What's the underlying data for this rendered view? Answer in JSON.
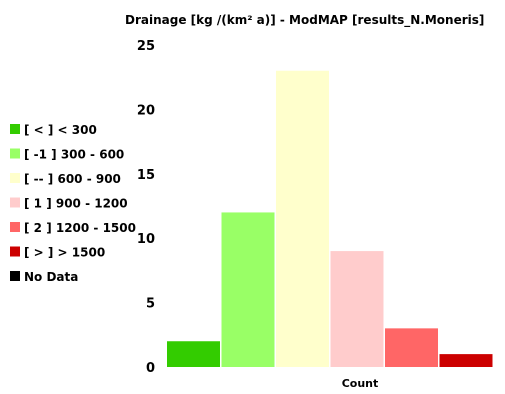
{
  "chart_data": {
    "type": "bar",
    "title": "Drainage [kg /(km² a)] - ModMAP [results_N.Moneris]",
    "xlabel": "Count",
    "ylabel": "",
    "ylim": [
      0,
      25
    ],
    "yticks": [
      "0",
      "5",
      "10",
      "15",
      "20",
      "25"
    ],
    "legend_position": "left",
    "grid": false,
    "series": [
      {
        "name": "[ < ] < 300",
        "value": 2,
        "color": "#33cc00"
      },
      {
        "name": "[ -1 ] 300 - 600",
        "value": 12,
        "color": "#99ff66"
      },
      {
        "name": "[ -- ] 600 - 900",
        "value": 23,
        "color": "#ffffcc"
      },
      {
        "name": "[ 1 ] 900 - 1200",
        "value": 9,
        "color": "#ffcccc"
      },
      {
        "name": "[ 2 ] 1200 - 1500",
        "value": 3,
        "color": "#ff6666"
      },
      {
        "name": "[ > ] > 1500",
        "value": 1,
        "color": "#cc0000"
      },
      {
        "name": "No Data",
        "value": null,
        "color": "#000000"
      }
    ]
  }
}
